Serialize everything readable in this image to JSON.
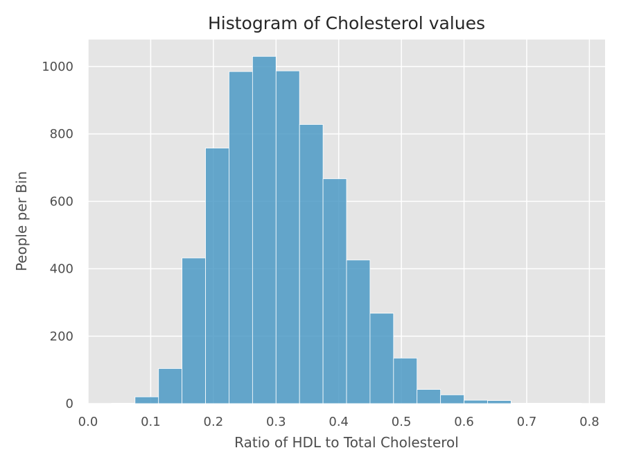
{
  "chart_data": {
    "type": "bar",
    "title": "Histogram of Cholesterol values",
    "xlabel": "Ratio of HDL to Total Cholesterol",
    "ylabel": "People per Bin",
    "xlim": [
      0.0,
      0.825
    ],
    "ylim": [
      0,
      1080
    ],
    "xticks": [
      0.0,
      0.1,
      0.2,
      0.3,
      0.4,
      0.5,
      0.6,
      0.7,
      0.8
    ],
    "xtick_labels": [
      "0.0",
      "0.1",
      "0.2",
      "0.3",
      "0.4",
      "0.5",
      "0.6",
      "0.7",
      "0.8"
    ],
    "yticks": [
      0,
      200,
      400,
      600,
      800,
      1000
    ],
    "ytick_labels": [
      "0",
      "200",
      "400",
      "600",
      "800",
      "1000"
    ],
    "grid": true,
    "bar_color": "#4c9ac6",
    "background_color": "#e5e5e5",
    "bins": [
      {
        "x0": 0.0375,
        "x1": 0.075,
        "value": 1
      },
      {
        "x0": 0.075,
        "x1": 0.1125,
        "value": 20
      },
      {
        "x0": 0.1125,
        "x1": 0.15,
        "value": 104
      },
      {
        "x0": 0.15,
        "x1": 0.1875,
        "value": 432
      },
      {
        "x0": 0.1875,
        "x1": 0.225,
        "value": 758
      },
      {
        "x0": 0.225,
        "x1": 0.2625,
        "value": 985
      },
      {
        "x0": 0.2625,
        "x1": 0.3,
        "value": 1030
      },
      {
        "x0": 0.3,
        "x1": 0.3375,
        "value": 987
      },
      {
        "x0": 0.3375,
        "x1": 0.375,
        "value": 828
      },
      {
        "x0": 0.375,
        "x1": 0.4125,
        "value": 667
      },
      {
        "x0": 0.4125,
        "x1": 0.45,
        "value": 426
      },
      {
        "x0": 0.45,
        "x1": 0.4875,
        "value": 268
      },
      {
        "x0": 0.4875,
        "x1": 0.525,
        "value": 135
      },
      {
        "x0": 0.525,
        "x1": 0.5625,
        "value": 42
      },
      {
        "x0": 0.5625,
        "x1": 0.6,
        "value": 26
      },
      {
        "x0": 0.6,
        "x1": 0.6375,
        "value": 10
      },
      {
        "x0": 0.6375,
        "x1": 0.675,
        "value": 9
      },
      {
        "x0": 0.675,
        "x1": 0.7125,
        "value": 1
      },
      {
        "x0": 0.7125,
        "x1": 0.75,
        "value": 1
      },
      {
        "x0": 0.75,
        "x1": 0.7875,
        "value": 1
      }
    ]
  }
}
